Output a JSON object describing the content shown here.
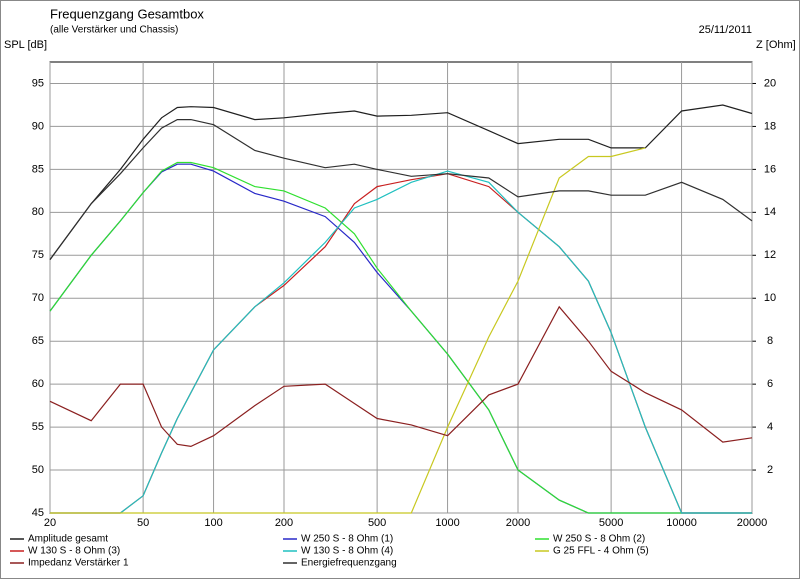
{
  "chart_data": {
    "type": "line",
    "title": "Frequenzgang Gesamtbox",
    "subtitle": "(alle Verstärker und Chassis)",
    "date": "25/11/2011",
    "ylabel": "SPL [dB]",
    "y2label": "Z [Ohm]",
    "xscale": "log",
    "grid": true,
    "x": [
      20,
      30,
      40,
      50,
      60,
      70,
      80,
      100,
      150,
      200,
      300,
      400,
      500,
      700,
      1000,
      1500,
      2000,
      3000,
      4000,
      5000,
      7000,
      10000,
      15000,
      20000
    ],
    "xlim": [
      20,
      20000
    ],
    "xticks": [
      20,
      50,
      100,
      200,
      500,
      1000,
      2000,
      5000,
      10000,
      20000
    ],
    "ylim": [
      45,
      97.5
    ],
    "yticks": [
      45,
      50,
      55,
      60,
      65,
      70,
      75,
      80,
      85,
      90,
      95
    ],
    "y2lim": [
      0,
      21
    ],
    "y2ticks": [
      2,
      4,
      6,
      8,
      10,
      12,
      14,
      16,
      18,
      20
    ],
    "series": [
      {
        "name": "Amplitude gesamt",
        "color": "#202020",
        "values": [
          74.5,
          81,
          85,
          88.5,
          91,
          92.2,
          92.3,
          92.2,
          90.8,
          91,
          91.5,
          91.8,
          91.2,
          91.3,
          91.6,
          89.5,
          88,
          88.5,
          88.5,
          87.5,
          87.5,
          91.8,
          92.5,
          91.5
        ]
      },
      {
        "name": "W 250 S - 8 Ohm  (1)",
        "color": "#2828c8",
        "values": [
          68.5,
          75,
          79,
          82.3,
          84.7,
          85.6,
          85.6,
          84.8,
          82.2,
          81.3,
          79.5,
          76.5,
          73,
          68.5,
          63.5,
          57,
          50,
          46.5,
          45,
          45,
          45,
          45,
          45,
          45
        ]
      },
      {
        "name": "W 250 S - 8 Ohm  (2)",
        "color": "#30e030",
        "values": [
          68.5,
          75,
          79,
          82.3,
          84.8,
          85.8,
          85.8,
          85.2,
          83,
          82.5,
          80.5,
          77.5,
          73.5,
          68.5,
          63.5,
          57,
          50,
          46.5,
          45,
          45,
          45,
          45,
          45,
          45
        ]
      },
      {
        "name": "W 130 S - 8 Ohm (3)",
        "color": "#c82020",
        "values": [
          45,
          45,
          45,
          47,
          52,
          56,
          59,
          64,
          69,
          71.5,
          76,
          81,
          83,
          83.8,
          84.5,
          83,
          80,
          76,
          72,
          66,
          55,
          45,
          45,
          45
        ]
      },
      {
        "name": "W 130 S - 8 Ohm (4)",
        "color": "#20c0c0",
        "values": [
          45,
          45,
          45,
          47,
          52,
          56,
          59,
          64,
          69,
          71.8,
          76.5,
          80.5,
          81.5,
          83.5,
          84.8,
          83.5,
          80,
          76,
          72,
          66,
          55,
          45,
          45,
          45
        ]
      },
      {
        "name": "G 25 FFL - 4 Ohm (5)",
        "color": "#c8c820",
        "values": [
          45,
          45,
          45,
          45,
          45,
          45,
          45,
          45,
          45,
          45,
          45,
          45,
          45,
          45,
          55,
          65.5,
          72,
          84,
          86.5,
          86.5,
          87.5,
          null,
          null,
          null
        ]
      },
      {
        "name": "Impedanz Verstärker 1",
        "color": "#8b2020",
        "axis": "y2",
        "values": [
          5.2,
          4.3,
          6,
          6,
          4,
          3.2,
          3.1,
          3.6,
          5,
          5.9,
          6,
          5.1,
          4.4,
          4.1,
          3.6,
          5.5,
          6,
          9.6,
          8,
          6.6,
          5.6,
          4.8,
          3.3,
          3.5
        ]
      },
      {
        "name": "Energiefrequenzgang",
        "color": "#303030",
        "values": [
          74.5,
          81,
          84.5,
          87.5,
          89.8,
          90.8,
          90.8,
          90.2,
          87.2,
          86.3,
          85.2,
          85.6,
          85,
          84.2,
          84.5,
          84,
          81.8,
          82.5,
          82.5,
          82,
          82,
          83.5,
          81.5,
          79
        ]
      }
    ]
  }
}
